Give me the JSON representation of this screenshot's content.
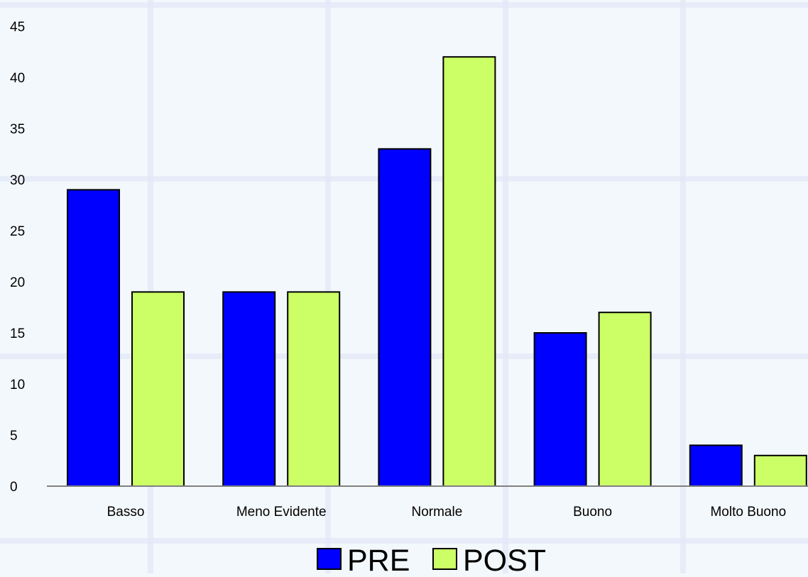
{
  "chart_data": {
    "type": "bar",
    "categories": [
      "Basso",
      "Meno Evidente",
      "Normale",
      "Buono",
      "Molto Buono"
    ],
    "series": [
      {
        "name": "PRE",
        "values": [
          29,
          19,
          33,
          15,
          4
        ],
        "color": "#0000ff"
      },
      {
        "name": "POST",
        "values": [
          19,
          19,
          42,
          17,
          3
        ],
        "color": "#ccff66"
      }
    ],
    "ylim": [
      0,
      45
    ],
    "yticks": [
      "0",
      "5",
      "10",
      "15",
      "20",
      "25",
      "30",
      "35",
      "40",
      "45"
    ],
    "grid": true,
    "legend_position": "bottom"
  },
  "colors": {
    "background": "#f3f8fc",
    "gridline": "#e3e9f7",
    "bar_border": "#000000",
    "axis": "#808080"
  }
}
